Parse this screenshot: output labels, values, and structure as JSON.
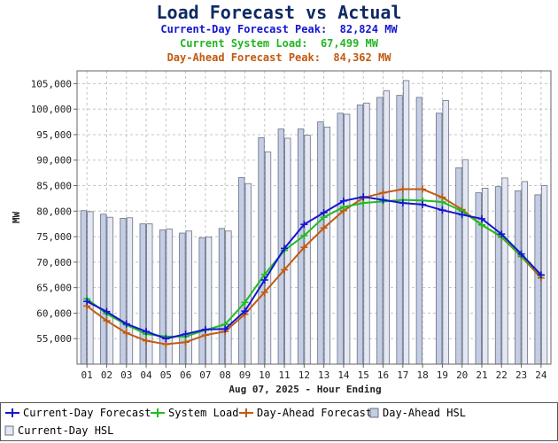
{
  "header": {
    "title": "Load Forecast vs Actual",
    "line1": "Current-Day Forecast Peak:  82,824 MW",
    "line2": "Current System Load:  67,499 MW",
    "line3": "Day-Ahead Forecast Peak:  84,362 MW"
  },
  "colors": {
    "current_day": "#1515d0",
    "system_load": "#22bb22",
    "day_ahead": "#c25a10",
    "hsl_fill": "#c3cde3",
    "hsl_stroke": "#6b7085"
  },
  "chart_data": {
    "type": "bar",
    "xlabel": "Aug 07, 2025 - Hour Ending",
    "ylabel": "MW",
    "ylim": [
      50000,
      107500
    ],
    "yticks": [
      55000,
      60000,
      65000,
      70000,
      75000,
      80000,
      85000,
      90000,
      95000,
      100000,
      105000
    ],
    "ytick_labels": [
      "55,000",
      "60,000",
      "65,000",
      "70,000",
      "75,000",
      "80,000",
      "85,000",
      "90,000",
      "95,000",
      "100,000",
      "105,000"
    ],
    "grid": true,
    "categories": [
      "01",
      "02",
      "03",
      "04",
      "05",
      "06",
      "07",
      "08",
      "09",
      "10",
      "11",
      "12",
      "13",
      "14",
      "15",
      "16",
      "17",
      "18",
      "19",
      "20",
      "21",
      "22",
      "23",
      "24"
    ],
    "series": [
      {
        "name": "Current-Day Forecast",
        "kind": "line",
        "marker": "plus",
        "values": [
          62300,
          60300,
          57900,
          56400,
          55000,
          55900,
          56800,
          56900,
          60400,
          66500,
          72700,
          77400,
          79700,
          82000,
          82800,
          82200,
          81600,
          81300,
          80200,
          79300,
          78500,
          75500,
          71600,
          67500
        ]
      },
      {
        "name": "System Load",
        "kind": "line",
        "marker": "plus",
        "values": [
          62800,
          59900,
          57700,
          55900,
          55400,
          55400,
          56700,
          57800,
          62100,
          67600,
          72300,
          75200,
          78800,
          80800,
          81600,
          81900,
          82200,
          82100,
          81800,
          80000,
          77300,
          75000,
          71200,
          67400
        ]
      },
      {
        "name": "Day-Ahead Forecast",
        "kind": "line",
        "marker": "plus",
        "values": [
          61400,
          58500,
          56100,
          54600,
          53900,
          54300,
          55700,
          56400,
          59800,
          64100,
          68500,
          72900,
          76700,
          80100,
          82600,
          83600,
          84300,
          84300,
          82700,
          80300,
          77300,
          74900,
          71100,
          66900
        ]
      },
      {
        "name": "Day-Ahead HSL",
        "kind": "bar",
        "values": [
          80100,
          79400,
          78600,
          77500,
          76300,
          75700,
          74800,
          76600,
          86600,
          94400,
          96100,
          96100,
          97500,
          99200,
          100800,
          102300,
          102700,
          102300,
          99200,
          88500,
          83600,
          84800,
          84000,
          83200
        ]
      },
      {
        "name": "Current-Day HSL",
        "kind": "bar",
        "values": [
          79900,
          78800,
          78700,
          77500,
          76500,
          76100,
          74900,
          76100,
          85400,
          91600,
          94300,
          94900,
          96500,
          99000,
          101200,
          103600,
          105600,
          null,
          101700,
          90100,
          84500,
          86500,
          85800,
          85000
        ]
      }
    ]
  },
  "legend": {
    "items": [
      "Current-Day Forecast",
      "System Load",
      "Day-Ahead Forecast",
      "Day-Ahead HSL",
      "Current-Day HSL"
    ]
  }
}
